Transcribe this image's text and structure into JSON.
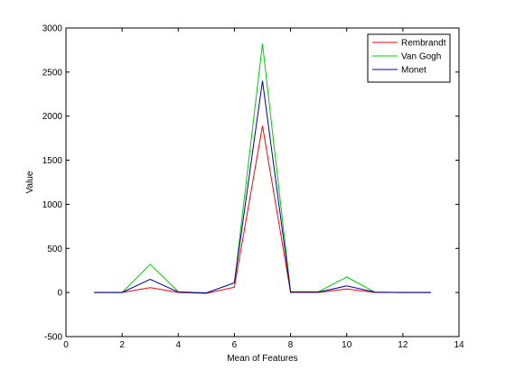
{
  "chart_data": {
    "type": "line",
    "xlabel": "Mean of Features",
    "ylabel": "Value",
    "xlim": [
      0,
      14
    ],
    "ylim": [
      -500,
      3000
    ],
    "xticks": [
      0,
      2,
      4,
      6,
      8,
      10,
      12,
      14
    ],
    "yticks": [
      -500,
      0,
      500,
      1000,
      1500,
      2000,
      2500,
      3000
    ],
    "grid": false,
    "legend_position": "top-right",
    "x": [
      1,
      2,
      3,
      4,
      5,
      6,
      7,
      8,
      9,
      10,
      11,
      12,
      13
    ],
    "series": [
      {
        "name": "Rembrandt",
        "color": "#ff0000",
        "values": [
          0,
          0,
          55,
          0,
          -10,
          60,
          1890,
          0,
          0,
          40,
          0,
          0,
          0
        ]
      },
      {
        "name": "Van Gogh",
        "color": "#00cc00",
        "values": [
          0,
          0,
          320,
          10,
          -5,
          110,
          2820,
          10,
          10,
          175,
          5,
          0,
          0
        ]
      },
      {
        "name": "Monet",
        "color": "#0000aa",
        "values": [
          0,
          0,
          150,
          5,
          -5,
          110,
          2400,
          5,
          5,
          75,
          5,
          0,
          0
        ]
      }
    ]
  }
}
